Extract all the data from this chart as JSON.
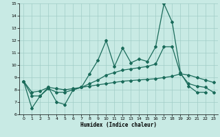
{
  "xlabel": "Humidex (Indice chaleur)",
  "xlim": [
    -0.5,
    23.5
  ],
  "ylim": [
    6,
    15
  ],
  "xticks": [
    0,
    1,
    2,
    3,
    4,
    5,
    6,
    7,
    8,
    9,
    10,
    11,
    12,
    13,
    14,
    15,
    16,
    17,
    18,
    19,
    20,
    21,
    22,
    23
  ],
  "yticks": [
    6,
    7,
    8,
    9,
    10,
    11,
    12,
    13,
    14,
    15
  ],
  "background_color": "#c8eae4",
  "grid_color": "#a0cdc6",
  "line_color": "#1a6b5a",
  "line1_x": [
    0,
    1,
    2,
    3,
    4,
    5,
    6,
    7,
    8,
    9,
    10,
    11,
    12,
    13,
    14,
    15,
    16,
    17,
    18,
    19,
    20,
    21,
    22
  ],
  "line1_y": [
    8.7,
    6.5,
    7.5,
    8.2,
    7.0,
    6.8,
    8.0,
    8.2,
    9.3,
    10.4,
    12.0,
    9.9,
    11.4,
    10.2,
    10.5,
    10.3,
    11.5,
    15.0,
    13.5,
    9.4,
    8.3,
    7.8,
    7.8
  ],
  "line2_x": [
    0,
    1,
    2,
    3,
    4,
    5,
    6,
    7,
    8,
    9,
    10,
    11,
    12,
    13,
    14,
    15,
    16,
    17,
    18,
    19,
    20,
    21,
    22,
    23
  ],
  "line2_y": [
    8.7,
    7.5,
    7.5,
    8.1,
    7.8,
    7.8,
    8.0,
    8.2,
    8.5,
    8.8,
    9.2,
    9.4,
    9.6,
    9.7,
    9.8,
    9.9,
    10.1,
    11.5,
    11.5,
    9.3,
    8.5,
    8.3,
    8.2,
    7.8
  ],
  "line3_x": [
    0,
    1,
    2,
    3,
    4,
    5,
    6,
    7,
    8,
    9,
    10,
    11,
    12,
    13,
    14,
    15,
    16,
    17,
    18,
    19,
    20,
    21,
    22,
    23
  ],
  "line3_y": [
    8.7,
    7.8,
    7.9,
    8.2,
    8.1,
    8.0,
    8.1,
    8.2,
    8.3,
    8.4,
    8.5,
    8.6,
    8.7,
    8.75,
    8.8,
    8.85,
    8.9,
    9.0,
    9.1,
    9.3,
    9.2,
    9.0,
    8.8,
    8.6
  ]
}
